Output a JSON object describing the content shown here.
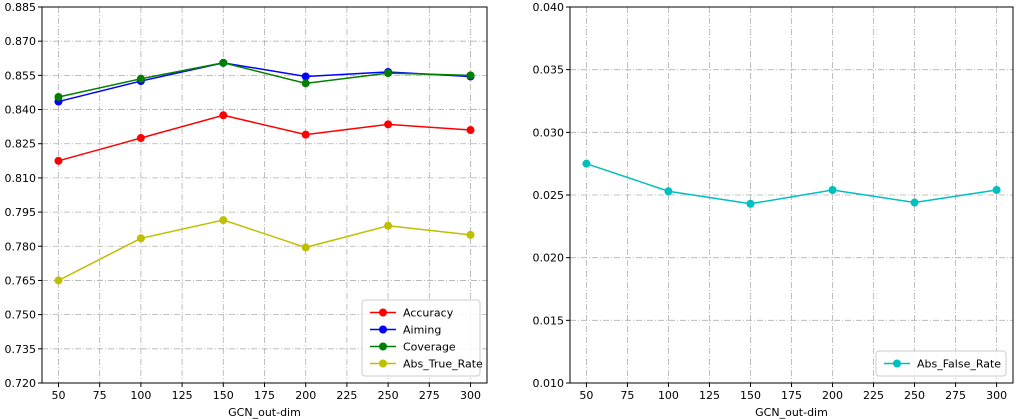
{
  "chart_data": [
    {
      "type": "line",
      "x": [
        50,
        100,
        150,
        200,
        250,
        300
      ],
      "xlabel": "GCN_out-dim",
      "ylabel": "",
      "xlim": [
        40,
        310
      ],
      "ylim": [
        0.72,
        0.885
      ],
      "xticks": [
        50,
        75,
        100,
        125,
        150,
        175,
        200,
        225,
        250,
        275,
        300
      ],
      "yticks": [
        0.72,
        0.735,
        0.75,
        0.765,
        0.78,
        0.795,
        0.81,
        0.825,
        0.84,
        0.855,
        0.87,
        0.885
      ],
      "ytick_decimals": 3,
      "grid": true,
      "legend_position": "lower-right",
      "series": [
        {
          "name": "Accuracy",
          "color": "#ff0000",
          "values": [
            0.8175,
            0.8275,
            0.8375,
            0.829,
            0.8335,
            0.831
          ]
        },
        {
          "name": "Aiming",
          "color": "#0000ff",
          "values": [
            0.8435,
            0.8525,
            0.8605,
            0.8545,
            0.8565,
            0.8545
          ]
        },
        {
          "name": "Coverage",
          "color": "#007f00",
          "values": [
            0.8455,
            0.8535,
            0.8605,
            0.8515,
            0.856,
            0.855
          ]
        },
        {
          "name": "Abs_True_Rate",
          "color": "#bfbf00",
          "values": [
            0.765,
            0.7835,
            0.7915,
            0.7795,
            0.789,
            0.785
          ]
        }
      ]
    },
    {
      "type": "line",
      "x": [
        50,
        100,
        150,
        200,
        250,
        300
      ],
      "xlabel": "GCN_out-dim",
      "ylabel": "",
      "xlim": [
        40,
        310
      ],
      "ylim": [
        0.01,
        0.04
      ],
      "xticks": [
        50,
        75,
        100,
        125,
        150,
        175,
        200,
        225,
        250,
        275,
        300
      ],
      "yticks": [
        0.01,
        0.015,
        0.02,
        0.025,
        0.03,
        0.035,
        0.04
      ],
      "ytick_decimals": 3,
      "grid": true,
      "legend_position": "lower-right",
      "series": [
        {
          "name": "Abs_False_Rate",
          "color": "#00bfbf",
          "values": [
            0.0275,
            0.0253,
            0.0243,
            0.0254,
            0.0244,
            0.0254
          ]
        }
      ]
    }
  ]
}
